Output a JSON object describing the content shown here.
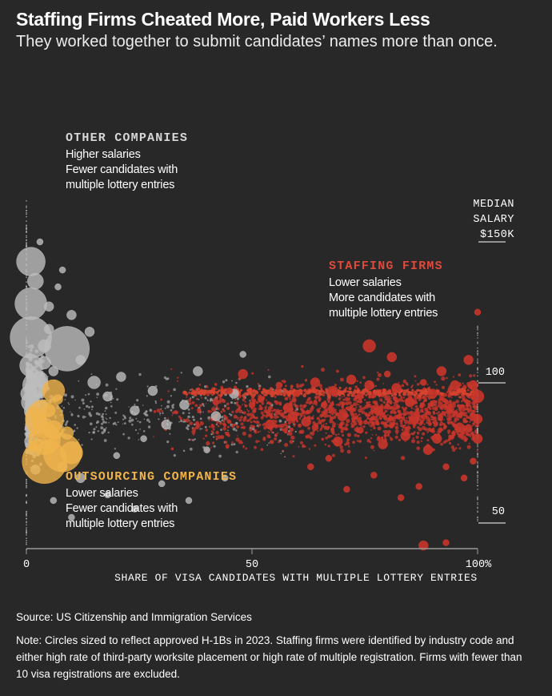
{
  "header": {
    "title": "Staffing Firms Cheated More, Paid Workers Less",
    "subtitle": "They worked together to submit candidates’ names more than once."
  },
  "annotations": {
    "other": {
      "heading": "OTHER COMPANIES",
      "lines": [
        "Higher salaries",
        "Fewer candidates with",
        "multiple lottery entries"
      ]
    },
    "staffing": {
      "heading": "STAFFING FIRMS",
      "lines": [
        "Lower salaries",
        "More candidates with",
        "multiple lottery entries"
      ]
    },
    "outsourcing": {
      "heading": "OUTSOURCING COMPANIES",
      "lines": [
        "Lower salaries",
        "Fewer candidates with",
        "multiple lottery entries"
      ]
    }
  },
  "footer": {
    "source": "Source: US Citizenship and Immigration Services",
    "note": "Note: Circles sized to reflect approved H-1Bs in 2023. Staffing firms were identified by industry code and either high rate of third-party worksite placement or high rate of multiple registration. Firms with fewer than 10 visa registrations are excluded."
  },
  "colors": {
    "background": "#282828",
    "other_companies": "#bdbdbd",
    "staffing_firms": "#c8352a",
    "outsourcing_companies": "#f0b44c",
    "axis": "#9a9a9a"
  },
  "chart_data": {
    "type": "scatter",
    "xlabel": "SHARE OF VISA CANDIDATES WITH MULTIPLE LOTTERY ENTRIES",
    "ylabel_lines": [
      "MEDIAN",
      "SALARY",
      "$150K"
    ],
    "x_ticks": [
      "0",
      "50",
      "100%"
    ],
    "y_ticks": [
      "100",
      "50"
    ],
    "xlim": [
      0,
      100
    ],
    "ylim": [
      40,
      160
    ],
    "grid": false,
    "legend": "inline annotations",
    "series": [
      {
        "name": "OTHER COMPANIES",
        "color": "#bdbdbd",
        "points": [
          [
            1,
            143,
            9
          ],
          [
            1,
            128,
            10
          ],
          [
            1,
            116,
            13
          ],
          [
            2,
            136,
            5
          ],
          [
            1,
            106,
            7
          ],
          [
            2,
            99,
            8
          ],
          [
            1,
            93,
            6
          ],
          [
            2,
            90,
            7
          ],
          [
            0.5,
            96,
            5
          ],
          [
            3,
            101,
            5
          ],
          [
            4,
            107,
            4
          ],
          [
            1.5,
            84,
            5
          ],
          [
            3,
            86,
            4
          ],
          [
            1,
            79,
            4
          ],
          [
            2,
            76,
            4
          ],
          [
            4,
            113,
            4
          ],
          [
            5,
            119,
            3
          ],
          [
            6,
            104,
            3
          ],
          [
            9,
            112,
            14
          ],
          [
            12,
            108,
            3
          ],
          [
            15,
            100,
            4
          ],
          [
            18,
            95,
            3
          ],
          [
            21,
            102,
            3
          ],
          [
            24,
            90,
            3
          ],
          [
            28,
            97,
            3
          ],
          [
            31,
            85,
            3
          ],
          [
            35,
            92,
            3
          ],
          [
            38,
            104,
            3
          ],
          [
            42,
            88,
            3
          ],
          [
            46,
            96,
            3
          ],
          [
            8,
            70,
            3
          ],
          [
            12,
            66,
            3
          ],
          [
            18,
            60,
            2
          ],
          [
            24,
            55,
            2
          ],
          [
            30,
            64,
            2
          ],
          [
            36,
            58,
            2
          ],
          [
            5,
            127,
            3
          ],
          [
            7,
            134,
            2
          ],
          [
            10,
            124,
            3
          ],
          [
            3,
            150,
            2
          ],
          [
            8,
            140,
            2
          ],
          [
            14,
            118,
            3
          ],
          [
            2,
            69,
            3
          ],
          [
            6,
            58,
            2
          ],
          [
            10,
            52,
            2
          ],
          [
            20,
            74,
            2
          ],
          [
            26,
            80,
            2
          ],
          [
            40,
            76,
            2
          ],
          [
            44,
            66,
            2
          ],
          [
            48,
            110,
            2
          ]
        ]
      },
      {
        "name": "STAFFING FIRMS",
        "color": "#c8352a",
        "points": [
          [
            100,
            125,
            2
          ],
          [
            98,
            108,
            3
          ],
          [
            95,
            99,
            3
          ],
          [
            92,
            104,
            3
          ],
          [
            90,
            96,
            3
          ],
          [
            88,
            100,
            2
          ],
          [
            85,
            93,
            3
          ],
          [
            82,
            98,
            3
          ],
          [
            80,
            103,
            2
          ],
          [
            78,
            90,
            3
          ],
          [
            76,
            99,
            3
          ],
          [
            74,
            95,
            2
          ],
          [
            72,
            101,
            3
          ],
          [
            70,
            88,
            3
          ],
          [
            68,
            97,
            3
          ],
          [
            66,
            92,
            2
          ],
          [
            64,
            100,
            3
          ],
          [
            62,
            86,
            3
          ],
          [
            60,
            96,
            2
          ],
          [
            58,
            91,
            3
          ],
          [
            56,
            99,
            2
          ],
          [
            54,
            85,
            3
          ],
          [
            52,
            94,
            2
          ],
          [
            76,
            113,
            4
          ],
          [
            81,
            109,
            3
          ],
          [
            86,
            87,
            3
          ],
          [
            91,
            80,
            3
          ],
          [
            96,
            84,
            3
          ],
          [
            94,
            91,
            2
          ],
          [
            89,
            76,
            3
          ],
          [
            84,
            81,
            3
          ],
          [
            79,
            78,
            3
          ],
          [
            74,
            83,
            2
          ],
          [
            69,
            79,
            3
          ],
          [
            64,
            84,
            2
          ],
          [
            59,
            88,
            3
          ],
          [
            99,
            72,
            2
          ],
          [
            97,
            66,
            2
          ],
          [
            93,
            70,
            2
          ],
          [
            87,
            63,
            2
          ],
          [
            83,
            59,
            2
          ],
          [
            77,
            67,
            2
          ],
          [
            71,
            62,
            2
          ],
          [
            67,
            73,
            2
          ],
          [
            63,
            70,
            2
          ],
          [
            100,
            95,
            4
          ],
          [
            99,
            99,
            3
          ],
          [
            100,
            87,
            3
          ],
          [
            98,
            84,
            2
          ],
          [
            100,
            80,
            3
          ],
          [
            45,
            97,
            2
          ],
          [
            48,
            103,
            3
          ],
          [
            50,
            92,
            2
          ],
          [
            42,
            93,
            2
          ],
          [
            88,
            42,
            3
          ],
          [
            93,
            43,
            2
          ]
        ]
      },
      {
        "name": "OUTSOURCING COMPANIES",
        "color": "#f0b44c",
        "points": [
          [
            4,
            87,
            12
          ],
          [
            4,
            80,
            10
          ],
          [
            6,
            97,
            7
          ],
          [
            8,
            75,
            12
          ],
          [
            4,
            72,
            14
          ],
          [
            10,
            75,
            7
          ],
          [
            3,
            86,
            5
          ],
          [
            6,
            83,
            6
          ],
          [
            5,
            90,
            4
          ],
          [
            7,
            94,
            3
          ],
          [
            9,
            82,
            4
          ],
          [
            2,
            89,
            4
          ],
          [
            1.5,
            77,
            3
          ]
        ]
      }
    ]
  }
}
